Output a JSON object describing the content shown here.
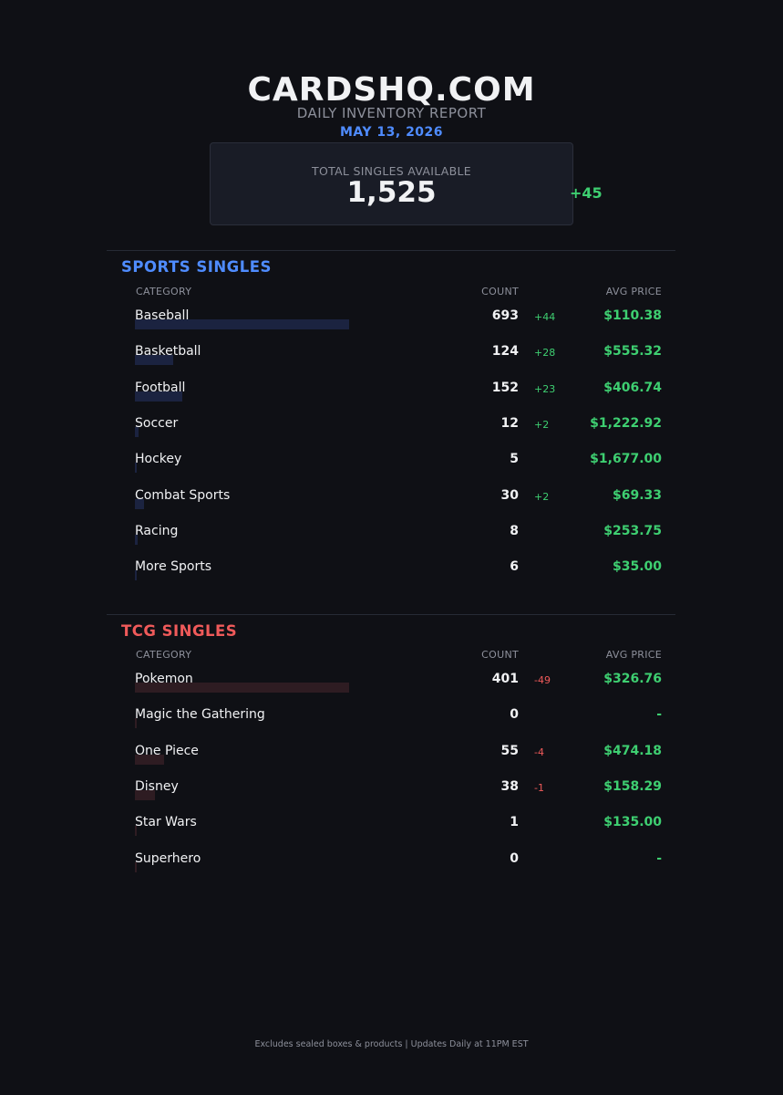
{
  "header": {
    "site_title": "CARDSHQ.COM",
    "subtitle": "DAILY INVENTORY REPORT",
    "date": "MAY 13, 2026"
  },
  "total": {
    "label": "TOTAL SINGLES AVAILABLE",
    "value": "1,525",
    "change": "+45"
  },
  "colors": {
    "background": "#0f1015",
    "sports_accent": "#4f8cff",
    "tcg_accent": "#ef5a5a",
    "positive": "#3ecf71",
    "negative": "#ef5a5a"
  },
  "sports": {
    "title": "SPORTS SINGLES",
    "col_category": "CATEGORY",
    "col_count": "COUNT",
    "col_price": "AVG PRICE",
    "rows": [
      {
        "name": "Baseball",
        "count": "693",
        "delta": "+44",
        "price": "$110.38"
      },
      {
        "name": "Basketball",
        "count": "124",
        "delta": "+28",
        "price": "$555.32"
      },
      {
        "name": "Football",
        "count": "152",
        "delta": "+23",
        "price": "$406.74"
      },
      {
        "name": "Soccer",
        "count": "12",
        "delta": "+2",
        "price": "$1,222.92"
      },
      {
        "name": "Hockey",
        "count": "5",
        "delta": "",
        "price": "$1,677.00"
      },
      {
        "name": "Combat Sports",
        "count": "30",
        "delta": "+2",
        "price": "$69.33"
      },
      {
        "name": "Racing",
        "count": "8",
        "delta": "",
        "price": "$253.75"
      },
      {
        "name": "More Sports",
        "count": "6",
        "delta": "",
        "price": "$35.00"
      }
    ]
  },
  "tcg": {
    "title": "TCG SINGLES",
    "col_category": "CATEGORY",
    "col_count": "COUNT",
    "col_price": "AVG PRICE",
    "rows": [
      {
        "name": "Pokemon",
        "count": "401",
        "delta": "-49",
        "price": "$326.76"
      },
      {
        "name": "Magic the Gathering",
        "count": "0",
        "delta": "",
        "price": "-"
      },
      {
        "name": "One Piece",
        "count": "55",
        "delta": "-4",
        "price": "$474.18"
      },
      {
        "name": "Disney",
        "count": "38",
        "delta": "-1",
        "price": "$158.29"
      },
      {
        "name": "Star Wars",
        "count": "1",
        "delta": "",
        "price": "$135.00"
      },
      {
        "name": "Superhero",
        "count": "0",
        "delta": "",
        "price": "-"
      }
    ]
  },
  "footer": {
    "text": "Excludes sealed boxes & products  |  Updates Daily at 11PM EST"
  }
}
